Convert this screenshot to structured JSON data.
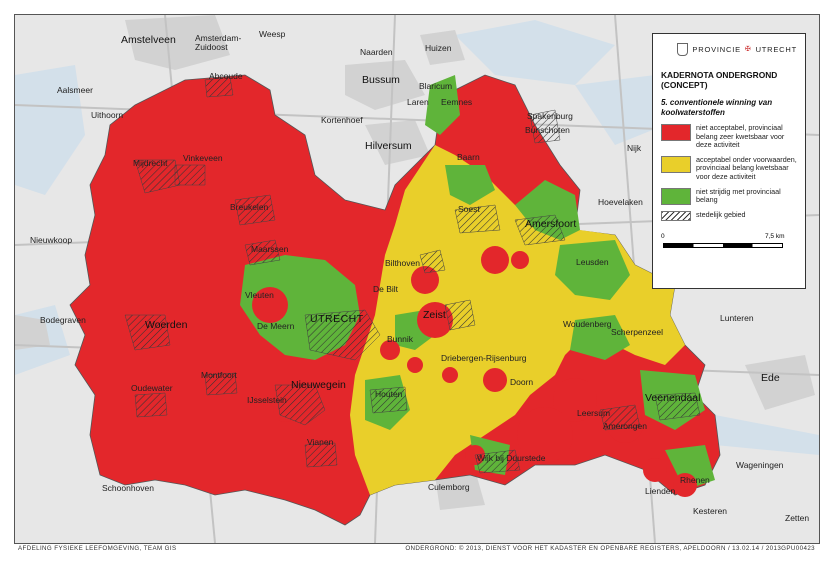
{
  "colors": {
    "red": "#e3272b",
    "yellow": "#e9cf2a",
    "green": "#5fb43a",
    "background": "#e7e7e7",
    "water": "#c9dbe8",
    "urban": "#cfcfcf",
    "roads": "#bdbdbd"
  },
  "legend": {
    "logo_text": "PROVINCIE",
    "logo_text2": "UTRECHT",
    "title": "KADERNOTA ONDERGROND (CONCEPT)",
    "subtitle": "5. conventionele winning van koolwaterstoffen",
    "items": [
      {
        "label": "niet acceptabel, provinciaal belang zeer kwetsbaar voor deze activiteit",
        "color": "#e3272b"
      },
      {
        "label": "acceptabel onder voorwaarden, provinciaal belang kwetsbaar voor deze activiteit",
        "color": "#e9cf2a"
      },
      {
        "label": "niet strijdig met provinciaal belang",
        "color": "#5fb43a"
      },
      {
        "label": "stedelijk gebied",
        "color": "hatch"
      }
    ],
    "scale_start": "0",
    "scale_end": "7,5 km"
  },
  "places": {
    "amstelveen": "Amstelveen",
    "amsterdam_zuidoost": "Amsterdam-\nZuidoost",
    "weesp": "Weesp",
    "naarden": "Naarden",
    "huizen": "Huizen",
    "aalsmeer": "Aalsmeer",
    "abcoude": "Abcoude",
    "bussum": "Bussum",
    "blaricum": "Blaricum",
    "laren": "Laren",
    "eemnes": "Eemnes",
    "uithoorn": "Uithoorn",
    "kortenhoef": "Kortenhoef",
    "spakenburg": "Spakenburg",
    "bunschoten": "Bunschoten",
    "hilversum": "Hilversum",
    "mijdrecht": "Mijdrecht",
    "vinkeveen": "Vinkeveen",
    "baarn": "Baarn",
    "nijkerk": "Nijk",
    "breukelen": "Breukelen",
    "soest": "Soest",
    "hoevelaken": "Hoevelaken",
    "nieuwkoop": "Nieuwkoop",
    "amersfoort": "Amersfoort",
    "maarssen": "Maarssen",
    "bilthoven": "Bilthoven",
    "leusden": "Leusden",
    "de_bilt": "De Bilt",
    "vleuten": "Vleuten",
    "bodegraven": "Bodegraven",
    "utrecht": "UTRECHT",
    "zeist": "Zeist",
    "lunteren": "Lunteren",
    "woerden": "Woerden",
    "de_meern": "De Meern",
    "woudenberg": "Woudenberg",
    "scherpenzeel": "Scherpenzeel",
    "bunnik": "Bunnik",
    "driebergen": "Driebergen-Rijsenburg",
    "doorn": "Doorn",
    "ede": "Ede",
    "nieuwegein": "Nieuwegein",
    "montfoort": "Montfoort",
    "oudewater": "Oudewater",
    "veenendaal": "Veenendaal",
    "ijsselstein": "IJsselstein",
    "houten": "Houten",
    "leersum": "Leersum",
    "amerongen": "Amerongen",
    "vianen": "Vianen",
    "wijk": "Wijk bij Duurstede",
    "wageningen": "Wageningen",
    "schoonhoven": "Schoonhoven",
    "culemborg": "Culemborg",
    "rhenen": "Rhenen",
    "lienden": "Lienden",
    "kesteren": "Kesteren",
    "zetten": "Zetten"
  },
  "footer": {
    "left": "AFDELING FYSIEKE LEEFOMGEVING, TEAM GIS",
    "right": "ONDERGROND: © 2013, DIENST VOOR HET KADASTER EN OPENBARE REGISTERS, APELDOORN  /  13.02.14  /  2013GPU00423"
  }
}
